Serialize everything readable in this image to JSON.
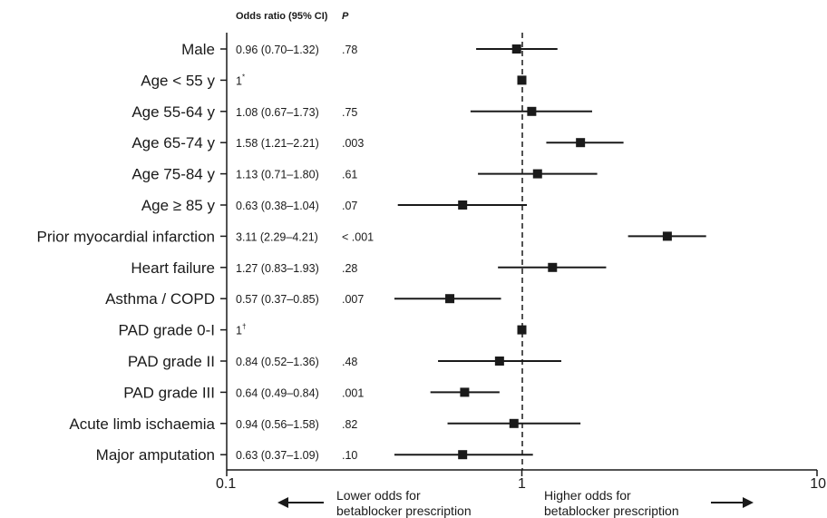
{
  "chart_data": {
    "type": "forest",
    "headers": {
      "or": "Odds ratio (95% CI)",
      "p": "P"
    },
    "x_scale": "log",
    "xlim": [
      0.1,
      10
    ],
    "reference_line": 1,
    "x_ticks": [
      "0.1",
      "1",
      "10"
    ],
    "rows": [
      {
        "label": "Male",
        "or": 0.96,
        "lo": 0.7,
        "hi": 1.32,
        "or_text": "0.96 (0.70–1.32)",
        "p": ".78"
      },
      {
        "label": "Age < 55 y",
        "or": 1,
        "lo": null,
        "hi": null,
        "or_text": "1",
        "sup": "*",
        "p": ""
      },
      {
        "label": "Age 55-64 y",
        "or": 1.08,
        "lo": 0.67,
        "hi": 1.73,
        "or_text": "1.08 (0.67–1.73)",
        "p": ".75"
      },
      {
        "label": "Age 65-74 y",
        "or": 1.58,
        "lo": 1.21,
        "hi": 2.21,
        "or_text": "1.58 (1.21–2.21)",
        "p": ".003"
      },
      {
        "label": "Age 75-84 y",
        "or": 1.13,
        "lo": 0.71,
        "hi": 1.8,
        "or_text": "1.13 (0.71–1.80)",
        "p": ".61"
      },
      {
        "label": "Age ≥ 85 y",
        "or": 0.63,
        "lo": 0.38,
        "hi": 1.04,
        "or_text": "0.63 (0.38–1.04)",
        "p": ".07"
      },
      {
        "label": "Prior myocardial infarction",
        "or": 3.11,
        "lo": 2.29,
        "hi": 4.21,
        "or_text": "3.11 (2.29–4.21)",
        "p": "< .001"
      },
      {
        "label": "Heart failure",
        "or": 1.27,
        "lo": 0.83,
        "hi": 1.93,
        "or_text": "1.27 (0.83–1.93)",
        "p": ".28"
      },
      {
        "label": "Asthma / COPD",
        "or": 0.57,
        "lo": 0.37,
        "hi": 0.85,
        "or_text": "0.57 (0.37–0.85)",
        "p": ".007"
      },
      {
        "label": "PAD grade 0-I",
        "or": 1,
        "lo": null,
        "hi": null,
        "or_text": "1",
        "sup": "†",
        "p": ""
      },
      {
        "label": "PAD grade II",
        "or": 0.84,
        "lo": 0.52,
        "hi": 1.36,
        "or_text": "0.84 (0.52–1.36)",
        "p": ".48"
      },
      {
        "label": "PAD grade III",
        "or": 0.64,
        "lo": 0.49,
        "hi": 0.84,
        "or_text": "0.64 (0.49–0.84)",
        "p": ".001"
      },
      {
        "label": "Acute limb ischaemia",
        "or": 0.94,
        "lo": 0.56,
        "hi": 1.58,
        "or_text": "0.94 (0.56–1.58)",
        "p": ".82"
      },
      {
        "label": "Major amputation",
        "or": 0.63,
        "lo": 0.37,
        "hi": 1.09,
        "or_text": "0.63 (0.37–1.09)",
        "p": ".10"
      }
    ],
    "annotations": {
      "lower": [
        "Lower odds for",
        "betablocker prescription"
      ],
      "higher": [
        "Higher odds for",
        "betablocker prescription"
      ]
    }
  }
}
